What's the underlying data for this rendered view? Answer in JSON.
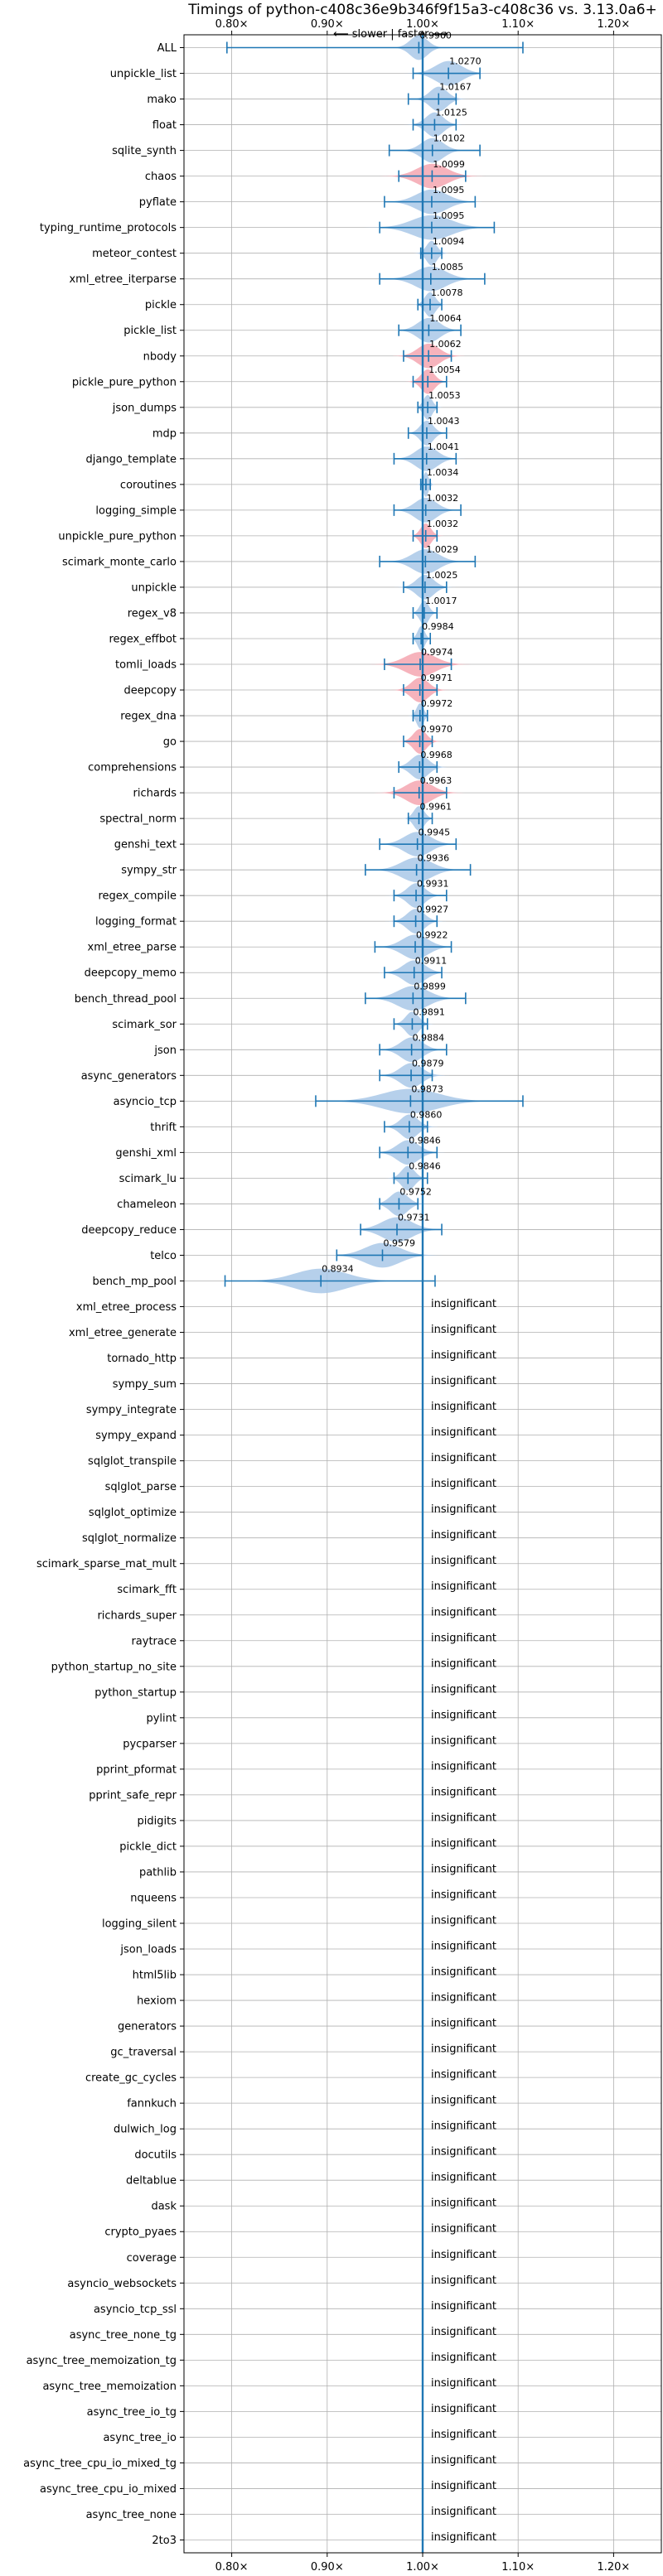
{
  "chart_data": {
    "type": "violin",
    "title": "Timings of python-c408c36e9b346f9f15a3-c408c36 vs. 3.13.0a6+",
    "direction_label": "⟵ slower | faster ⟶",
    "xlim": [
      0.75,
      1.25
    ],
    "x_ticks": [
      0.8,
      0.9,
      1.0,
      1.1,
      1.2
    ],
    "x_tick_labels": [
      "0.80×",
      "0.90×",
      "1.00×",
      "1.10×",
      "1.20×"
    ],
    "reference_line": 1.0,
    "grid": true,
    "colors": {
      "normal": "#a9c8e8",
      "highlight": "#f4a6b0",
      "line": "#1f77b4",
      "grid": "#b0b0b0"
    },
    "insignificant_label": "insignificant",
    "benchmarks": [
      {
        "name": "ALL",
        "value": 0.996,
        "label": "0.9960",
        "min": 0.795,
        "max": 1.105,
        "spread": 0.02,
        "highlight": false,
        "insignificant": false
      },
      {
        "name": "unpickle_list",
        "value": 1.027,
        "label": "1.0270",
        "min": 0.99,
        "max": 1.06,
        "spread": 0.03,
        "highlight": false,
        "insignificant": false
      },
      {
        "name": "mako",
        "value": 1.0167,
        "label": "1.0167",
        "min": 0.985,
        "max": 1.035,
        "spread": 0.02,
        "highlight": false,
        "insignificant": false
      },
      {
        "name": "float",
        "value": 1.0125,
        "label": "1.0125",
        "min": 0.99,
        "max": 1.035,
        "spread": 0.02,
        "highlight": false,
        "insignificant": false
      },
      {
        "name": "sqlite_synth",
        "value": 1.0102,
        "label": "1.0102",
        "min": 0.965,
        "max": 1.06,
        "spread": 0.025,
        "highlight": false,
        "insignificant": false
      },
      {
        "name": "chaos",
        "value": 1.0099,
        "label": "1.0099",
        "min": 0.975,
        "max": 1.045,
        "spread": 0.035,
        "highlight": true,
        "insignificant": false
      },
      {
        "name": "pyflate",
        "value": 1.0095,
        "label": "1.0095",
        "min": 0.96,
        "max": 1.055,
        "spread": 0.035,
        "highlight": false,
        "insignificant": false
      },
      {
        "name": "typing_runtime_protocols",
        "value": 1.0095,
        "label": "1.0095",
        "min": 0.955,
        "max": 1.075,
        "spread": 0.045,
        "highlight": false,
        "insignificant": false
      },
      {
        "name": "meteor_contest",
        "value": 1.0094,
        "label": "1.0094",
        "min": 0.998,
        "max": 1.02,
        "spread": 0.012,
        "highlight": false,
        "insignificant": false
      },
      {
        "name": "xml_etree_iterparse",
        "value": 1.0085,
        "label": "1.0085",
        "min": 0.955,
        "max": 1.065,
        "spread": 0.035,
        "highlight": false,
        "insignificant": false
      },
      {
        "name": "pickle",
        "value": 1.0078,
        "label": "1.0078",
        "min": 0.995,
        "max": 1.02,
        "spread": 0.012,
        "highlight": false,
        "insignificant": false
      },
      {
        "name": "pickle_list",
        "value": 1.0064,
        "label": "1.0064",
        "min": 0.975,
        "max": 1.04,
        "spread": 0.025,
        "highlight": false,
        "insignificant": false
      },
      {
        "name": "nbody",
        "value": 1.0062,
        "label": "1.0062",
        "min": 0.98,
        "max": 1.03,
        "spread": 0.025,
        "highlight": true,
        "insignificant": false
      },
      {
        "name": "pickle_pure_python",
        "value": 1.0054,
        "label": "1.0054",
        "min": 0.99,
        "max": 1.025,
        "spread": 0.015,
        "highlight": true,
        "insignificant": false
      },
      {
        "name": "json_dumps",
        "value": 1.0053,
        "label": "1.0053",
        "min": 0.995,
        "max": 1.015,
        "spread": 0.01,
        "highlight": false,
        "insignificant": false
      },
      {
        "name": "mdp",
        "value": 1.0043,
        "label": "1.0043",
        "min": 0.985,
        "max": 1.025,
        "spread": 0.015,
        "highlight": false,
        "insignificant": false
      },
      {
        "name": "django_template",
        "value": 1.0041,
        "label": "1.0041",
        "min": 0.97,
        "max": 1.035,
        "spread": 0.025,
        "highlight": false,
        "insignificant": false
      },
      {
        "name": "coroutines",
        "value": 1.0034,
        "label": "1.0034",
        "min": 0.998,
        "max": 1.008,
        "spread": 0.006,
        "highlight": false,
        "insignificant": false
      },
      {
        "name": "logging_simple",
        "value": 1.0032,
        "label": "1.0032",
        "min": 0.97,
        "max": 1.04,
        "spread": 0.025,
        "highlight": false,
        "insignificant": false
      },
      {
        "name": "unpickle_pure_python",
        "value": 1.0032,
        "label": "1.0032",
        "min": 0.99,
        "max": 1.015,
        "spread": 0.012,
        "highlight": true,
        "insignificant": false
      },
      {
        "name": "scimark_monte_carlo",
        "value": 1.0029,
        "label": "1.0029",
        "min": 0.955,
        "max": 1.055,
        "spread": 0.03,
        "highlight": false,
        "insignificant": false
      },
      {
        "name": "unpickle",
        "value": 1.0025,
        "label": "1.0025",
        "min": 0.98,
        "max": 1.025,
        "spread": 0.02,
        "highlight": false,
        "insignificant": false
      },
      {
        "name": "regex_v8",
        "value": 1.0017,
        "label": "1.0017",
        "min": 0.99,
        "max": 1.015,
        "spread": 0.01,
        "highlight": false,
        "insignificant": false
      },
      {
        "name": "regex_effbot",
        "value": 0.9984,
        "label": "0.9984",
        "min": 0.99,
        "max": 1.008,
        "spread": 0.008,
        "highlight": false,
        "insignificant": false
      },
      {
        "name": "tomli_loads",
        "value": 0.9974,
        "label": "0.9974",
        "min": 0.96,
        "max": 1.03,
        "spread": 0.035,
        "highlight": true,
        "insignificant": false
      },
      {
        "name": "deepcopy",
        "value": 0.9971,
        "label": "0.9971",
        "min": 0.98,
        "max": 1.015,
        "spread": 0.02,
        "highlight": true,
        "insignificant": false
      },
      {
        "name": "regex_dna",
        "value": 0.9972,
        "label": "0.9972",
        "min": 0.99,
        "max": 1.005,
        "spread": 0.008,
        "highlight": false,
        "insignificant": false
      },
      {
        "name": "go",
        "value": 0.997,
        "label": "0.9970",
        "min": 0.98,
        "max": 1.01,
        "spread": 0.015,
        "highlight": true,
        "insignificant": false
      },
      {
        "name": "comprehensions",
        "value": 0.9968,
        "label": "0.9968",
        "min": 0.975,
        "max": 1.015,
        "spread": 0.02,
        "highlight": false,
        "insignificant": false
      },
      {
        "name": "richards",
        "value": 0.9963,
        "label": "0.9963",
        "min": 0.97,
        "max": 1.025,
        "spread": 0.03,
        "highlight": true,
        "insignificant": false
      },
      {
        "name": "spectral_norm",
        "value": 0.9961,
        "label": "0.9961",
        "min": 0.985,
        "max": 1.01,
        "spread": 0.012,
        "highlight": false,
        "insignificant": false
      },
      {
        "name": "genshi_text",
        "value": 0.9945,
        "label": "0.9945",
        "min": 0.955,
        "max": 1.035,
        "spread": 0.03,
        "highlight": false,
        "insignificant": false
      },
      {
        "name": "sympy_str",
        "value": 0.9936,
        "label": "0.9936",
        "min": 0.94,
        "max": 1.05,
        "spread": 0.035,
        "highlight": false,
        "insignificant": false
      },
      {
        "name": "regex_compile",
        "value": 0.9931,
        "label": "0.9931",
        "min": 0.97,
        "max": 1.025,
        "spread": 0.02,
        "highlight": false,
        "insignificant": false
      },
      {
        "name": "logging_format",
        "value": 0.9927,
        "label": "0.9927",
        "min": 0.97,
        "max": 1.015,
        "spread": 0.02,
        "highlight": false,
        "insignificant": false
      },
      {
        "name": "xml_etree_parse",
        "value": 0.9922,
        "label": "0.9922",
        "min": 0.95,
        "max": 1.03,
        "spread": 0.03,
        "highlight": false,
        "insignificant": false
      },
      {
        "name": "deepcopy_memo",
        "value": 0.9911,
        "label": "0.9911",
        "min": 0.96,
        "max": 1.02,
        "spread": 0.025,
        "highlight": false,
        "insignificant": false
      },
      {
        "name": "bench_thread_pool",
        "value": 0.9899,
        "label": "0.9899",
        "min": 0.94,
        "max": 1.045,
        "spread": 0.035,
        "highlight": false,
        "insignificant": false
      },
      {
        "name": "scimark_sor",
        "value": 0.9891,
        "label": "0.9891",
        "min": 0.97,
        "max": 1.005,
        "spread": 0.015,
        "highlight": false,
        "insignificant": false
      },
      {
        "name": "json",
        "value": 0.9884,
        "label": "0.9884",
        "min": 0.955,
        "max": 1.025,
        "spread": 0.025,
        "highlight": false,
        "insignificant": false
      },
      {
        "name": "async_generators",
        "value": 0.9879,
        "label": "0.9879",
        "min": 0.955,
        "max": 1.01,
        "spread": 0.025,
        "highlight": false,
        "insignificant": false
      },
      {
        "name": "asyncio_tcp",
        "value": 0.9873,
        "label": "0.9873",
        "min": 0.888,
        "max": 1.105,
        "spread": 0.065,
        "highlight": false,
        "insignificant": false
      },
      {
        "name": "thrift",
        "value": 0.986,
        "label": "0.9860",
        "min": 0.96,
        "max": 1.005,
        "spread": 0.02,
        "highlight": false,
        "insignificant": false
      },
      {
        "name": "genshi_xml",
        "value": 0.9846,
        "label": "0.9846",
        "min": 0.955,
        "max": 1.015,
        "spread": 0.025,
        "highlight": false,
        "insignificant": false
      },
      {
        "name": "scimark_lu",
        "value": 0.9846,
        "label": "0.9846",
        "min": 0.97,
        "max": 1.005,
        "spread": 0.015,
        "highlight": false,
        "insignificant": false
      },
      {
        "name": "chameleon",
        "value": 0.9752,
        "label": "0.9752",
        "min": 0.955,
        "max": 0.995,
        "spread": 0.02,
        "highlight": false,
        "insignificant": false
      },
      {
        "name": "deepcopy_reduce",
        "value": 0.9731,
        "label": "0.9731",
        "min": 0.935,
        "max": 1.02,
        "spread": 0.035,
        "highlight": false,
        "insignificant": false
      },
      {
        "name": "telco",
        "value": 0.9579,
        "label": "0.9579",
        "min": 0.91,
        "max": 1.0,
        "spread": 0.04,
        "highlight": false,
        "insignificant": false
      },
      {
        "name": "bench_mp_pool",
        "value": 0.8934,
        "label": "0.8934",
        "min": 0.793,
        "max": 1.013,
        "spread": 0.06,
        "highlight": false,
        "insignificant": false
      },
      {
        "name": "xml_etree_process",
        "insignificant": true
      },
      {
        "name": "xml_etree_generate",
        "insignificant": true
      },
      {
        "name": "tornado_http",
        "insignificant": true
      },
      {
        "name": "sympy_sum",
        "insignificant": true
      },
      {
        "name": "sympy_integrate",
        "insignificant": true
      },
      {
        "name": "sympy_expand",
        "insignificant": true
      },
      {
        "name": "sqlglot_transpile",
        "insignificant": true
      },
      {
        "name": "sqlglot_parse",
        "insignificant": true
      },
      {
        "name": "sqlglot_optimize",
        "insignificant": true
      },
      {
        "name": "sqlglot_normalize",
        "insignificant": true
      },
      {
        "name": "scimark_sparse_mat_mult",
        "insignificant": true
      },
      {
        "name": "scimark_fft",
        "insignificant": true
      },
      {
        "name": "richards_super",
        "insignificant": true
      },
      {
        "name": "raytrace",
        "insignificant": true
      },
      {
        "name": "python_startup_no_site",
        "insignificant": true
      },
      {
        "name": "python_startup",
        "insignificant": true
      },
      {
        "name": "pylint",
        "insignificant": true
      },
      {
        "name": "pycparser",
        "insignificant": true
      },
      {
        "name": "pprint_pformat",
        "insignificant": true
      },
      {
        "name": "pprint_safe_repr",
        "insignificant": true
      },
      {
        "name": "pidigits",
        "insignificant": true
      },
      {
        "name": "pickle_dict",
        "insignificant": true
      },
      {
        "name": "pathlib",
        "insignificant": true
      },
      {
        "name": "nqueens",
        "insignificant": true
      },
      {
        "name": "logging_silent",
        "insignificant": true
      },
      {
        "name": "json_loads",
        "insignificant": true
      },
      {
        "name": "html5lib",
        "insignificant": true
      },
      {
        "name": "hexiom",
        "insignificant": true
      },
      {
        "name": "generators",
        "insignificant": true
      },
      {
        "name": "gc_traversal",
        "insignificant": true
      },
      {
        "name": "create_gc_cycles",
        "insignificant": true
      },
      {
        "name": "fannkuch",
        "insignificant": true
      },
      {
        "name": "dulwich_log",
        "insignificant": true
      },
      {
        "name": "docutils",
        "insignificant": true
      },
      {
        "name": "deltablue",
        "insignificant": true
      },
      {
        "name": "dask",
        "insignificant": true
      },
      {
        "name": "crypto_pyaes",
        "insignificant": true
      },
      {
        "name": "coverage",
        "insignificant": true
      },
      {
        "name": "asyncio_websockets",
        "insignificant": true
      },
      {
        "name": "asyncio_tcp_ssl",
        "insignificant": true
      },
      {
        "name": "async_tree_none_tg",
        "insignificant": true
      },
      {
        "name": "async_tree_memoization_tg",
        "insignificant": true
      },
      {
        "name": "async_tree_memoization",
        "insignificant": true
      },
      {
        "name": "async_tree_io_tg",
        "insignificant": true
      },
      {
        "name": "async_tree_io",
        "insignificant": true
      },
      {
        "name": "async_tree_cpu_io_mixed_tg",
        "insignificant": true
      },
      {
        "name": "async_tree_cpu_io_mixed",
        "insignificant": true
      },
      {
        "name": "async_tree_none",
        "insignificant": true
      },
      {
        "name": "2to3",
        "insignificant": true
      }
    ]
  }
}
